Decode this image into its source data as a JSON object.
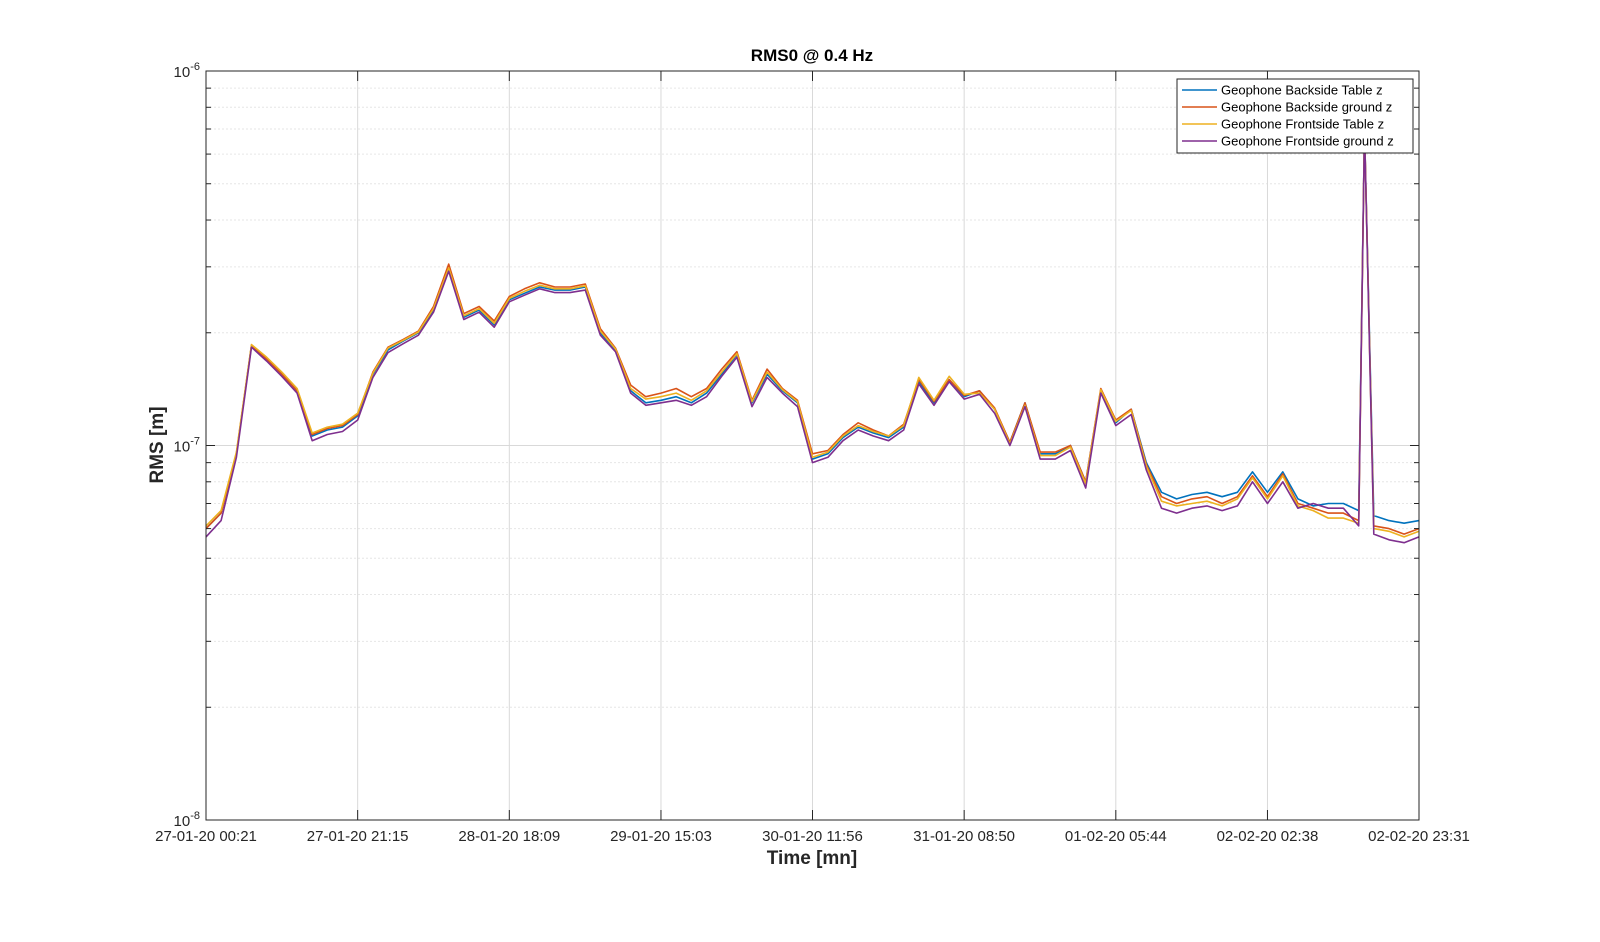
{
  "chart_data": {
    "type": "line",
    "title": "RMS0 @ 0.4 Hz",
    "xlabel": "Time [mn]",
    "ylabel": "RMS [m]",
    "yscale": "log",
    "ylim": [
      1e-08,
      1e-06
    ],
    "y_ticks": [
      {
        "base": "10",
        "exp": "-8",
        "value": 1e-08
      },
      {
        "base": "10",
        "exp": "-7",
        "value": 1e-07
      },
      {
        "base": "10",
        "exp": "-6",
        "value": 1e-06
      }
    ],
    "x_ticks": [
      "27-01-20 00:21",
      "27-01-20 21:15",
      "28-01-20 18:09",
      "29-01-20 15:03",
      "30-01-20 11:56",
      "31-01-20 08:50",
      "01-02-20 05:44",
      "02-02-20 02:38",
      "02-02-20 23:31"
    ],
    "xlim": [
      "27-01-20 00:21",
      "02-02-20 23:31"
    ],
    "grid": true,
    "legend_position": "top-right",
    "x": [
      "27-01-20 00:21",
      "27-01-20 02:26",
      "27-01-20 04:32",
      "27-01-20 06:37",
      "27-01-20 08:43",
      "27-01-20 10:48",
      "27-01-20 12:54",
      "27-01-20 14:59",
      "27-01-20 17:04",
      "27-01-20 19:10",
      "27-01-20 21:15",
      "27-01-20 23:21",
      "28-01-20 01:26",
      "28-01-20 03:32",
      "28-01-20 05:37",
      "28-01-20 07:42",
      "28-01-20 09:48",
      "28-01-20 11:53",
      "28-01-20 13:59",
      "28-01-20 16:04",
      "28-01-20 18:09",
      "28-01-20 20:15",
      "28-01-20 22:20",
      "29-01-20 00:26",
      "29-01-20 02:31",
      "29-01-20 04:37",
      "29-01-20 06:42",
      "29-01-20 08:47",
      "29-01-20 10:53",
      "29-01-20 12:58",
      "29-01-20 15:03",
      "29-01-20 17:09",
      "29-01-20 19:14",
      "29-01-20 21:20",
      "29-01-20 23:25",
      "30-01-20 01:31",
      "30-01-20 03:36",
      "30-01-20 05:41",
      "30-01-20 07:47",
      "30-01-20 09:52",
      "30-01-20 11:56",
      "30-01-20 14:03",
      "30-01-20 16:08",
      "30-01-20 18:14",
      "30-01-20 20:19",
      "30-01-20 22:25",
      "31-01-20 00:30",
      "31-01-20 02:35",
      "31-01-20 04:41",
      "31-01-20 06:46",
      "31-01-20 08:50",
      "31-01-20 10:57",
      "31-01-20 13:02",
      "31-01-20 15:08",
      "31-01-20 17:13",
      "31-01-20 19:19",
      "31-01-20 21:24",
      "31-01-20 23:29",
      "01-02-20 01:35",
      "01-02-20 03:40",
      "01-02-20 05:44",
      "01-02-20 07:51",
      "01-02-20 09:56",
      "01-02-20 12:02",
      "01-02-20 14:07",
      "01-02-20 16:13",
      "01-02-20 18:18",
      "01-02-20 20:23",
      "01-02-20 22:29",
      "02-02-20 00:34",
      "02-02-20 02:38",
      "02-02-20 04:45",
      "02-02-20 06:50",
      "02-02-20 08:56",
      "02-02-20 11:01",
      "02-02-20 13:06",
      "02-02-20 15:12",
      "02-02-20 17:17",
      "02-02-20 19:23",
      "02-02-20 21:28",
      "02-02-20 23:31"
    ],
    "series": [
      {
        "name": "Geophone Backside Table z",
        "color": "#0072BD",
        "values": [
          6e-08,
          6.6e-08,
          9.5e-08,
          1.85e-07,
          1.7e-07,
          1.55e-07,
          1.4e-07,
          1.06e-07,
          1.1e-07,
          1.12e-07,
          1.2e-07,
          1.55e-07,
          1.8e-07,
          1.9e-07,
          2e-07,
          2.3e-07,
          2.95e-07,
          2.2e-07,
          2.3e-07,
          2.1e-07,
          2.45e-07,
          2.55e-07,
          2.65e-07,
          2.6e-07,
          2.6e-07,
          2.65e-07,
          2e-07,
          1.8e-07,
          1.4e-07,
          1.3e-07,
          1.32e-07,
          1.35e-07,
          1.3e-07,
          1.38e-07,
          1.55e-07,
          1.75e-07,
          1.3e-07,
          1.55e-07,
          1.4e-07,
          1.3e-07,
          9.2e-08,
          9.5e-08,
          1.05e-07,
          1.12e-07,
          1.08e-07,
          1.05e-07,
          1.12e-07,
          1.48e-07,
          1.3e-07,
          1.5e-07,
          1.35e-07,
          1.4e-07,
          1.25e-07,
          1.02e-07,
          1.3e-07,
          9.5e-08,
          9.5e-08,
          1e-07,
          8e-08,
          1.4e-07,
          1.15e-07,
          1.25e-07,
          9e-08,
          7.5e-08,
          7.2e-08,
          7.4e-08,
          7.5e-08,
          7.3e-08,
          7.5e-08,
          8.5e-08,
          7.5e-08,
          8.5e-08,
          7.2e-08,
          6.9e-08,
          7e-08,
          7e-08,
          6.7e-08,
          6.5e-08,
          6.3e-08,
          6.2e-08,
          6.3e-08
        ]
      },
      {
        "name": "Geophone Backside ground z",
        "color": "#D95319",
        "values": [
          6e-08,
          6.6e-08,
          9.5e-08,
          1.85e-07,
          1.7e-07,
          1.55e-07,
          1.4e-07,
          1.07e-07,
          1.11e-07,
          1.13e-07,
          1.21e-07,
          1.57e-07,
          1.83e-07,
          1.92e-07,
          2.02e-07,
          2.35e-07,
          3.05e-07,
          2.25e-07,
          2.35e-07,
          2.15e-07,
          2.5e-07,
          2.62e-07,
          2.72e-07,
          2.65e-07,
          2.65e-07,
          2.7e-07,
          2.05e-07,
          1.82e-07,
          1.45e-07,
          1.35e-07,
          1.38e-07,
          1.42e-07,
          1.35e-07,
          1.42e-07,
          1.6e-07,
          1.78e-07,
          1.32e-07,
          1.6e-07,
          1.42e-07,
          1.32e-07,
          9.5e-08,
          9.7e-08,
          1.07e-07,
          1.15e-07,
          1.1e-07,
          1.06e-07,
          1.14e-07,
          1.5e-07,
          1.31e-07,
          1.5e-07,
          1.36e-07,
          1.4e-07,
          1.26e-07,
          1.02e-07,
          1.3e-07,
          9.6e-08,
          9.6e-08,
          1e-07,
          8e-08,
          1.42e-07,
          1.17e-07,
          1.25e-07,
          8.9e-08,
          7.3e-08,
          7e-08,
          7.2e-08,
          7.3e-08,
          7e-08,
          7.3e-08,
          8.3e-08,
          7.3e-08,
          8.4e-08,
          7e-08,
          6.8e-08,
          6.6e-08,
          6.6e-08,
          6.3e-08,
          6.1e-08,
          6e-08,
          5.8e-08,
          6e-08
        ]
      },
      {
        "name": "Geophone Frontside Table z",
        "color": "#EDB120",
        "values": [
          6.1e-08,
          6.7e-08,
          9.6e-08,
          1.86e-07,
          1.72e-07,
          1.57e-07,
          1.42e-07,
          1.08e-07,
          1.12e-07,
          1.14e-07,
          1.22e-07,
          1.56e-07,
          1.82e-07,
          1.91e-07,
          2.01e-07,
          2.32e-07,
          2.98e-07,
          2.22e-07,
          2.32e-07,
          2.12e-07,
          2.47e-07,
          2.58e-07,
          2.68e-07,
          2.62e-07,
          2.62e-07,
          2.67e-07,
          2.02e-07,
          1.81e-07,
          1.42e-07,
          1.33e-07,
          1.35e-07,
          1.38e-07,
          1.32e-07,
          1.4e-07,
          1.57e-07,
          1.76e-07,
          1.31e-07,
          1.57e-07,
          1.41e-07,
          1.31e-07,
          9.3e-08,
          9.6e-08,
          1.06e-07,
          1.13e-07,
          1.09e-07,
          1.06e-07,
          1.13e-07,
          1.52e-07,
          1.32e-07,
          1.53e-07,
          1.37e-07,
          1.38e-07,
          1.25e-07,
          1.01e-07,
          1.28e-07,
          9.4e-08,
          9.4e-08,
          9.9e-08,
          7.9e-08,
          1.41e-07,
          1.16e-07,
          1.24e-07,
          8.8e-08,
          7.1e-08,
          6.9e-08,
          7e-08,
          7.1e-08,
          6.9e-08,
          7.2e-08,
          8.2e-08,
          7.2e-08,
          8.3e-08,
          6.9e-08,
          6.7e-08,
          6.4e-08,
          6.4e-08,
          6.2e-08,
          6e-08,
          5.9e-08,
          5.7e-08,
          5.9e-08
        ]
      },
      {
        "name": "Geophone Frontside ground z",
        "color": "#7E2F8E",
        "values": [
          5.7e-08,
          6.3e-08,
          9.3e-08,
          1.83e-07,
          1.68e-07,
          1.53e-07,
          1.38e-07,
          1.03e-07,
          1.07e-07,
          1.09e-07,
          1.17e-07,
          1.52e-07,
          1.77e-07,
          1.87e-07,
          1.97e-07,
          2.27e-07,
          2.92e-07,
          2.17e-07,
          2.27e-07,
          2.07e-07,
          2.42e-07,
          2.52e-07,
          2.62e-07,
          2.56e-07,
          2.56e-07,
          2.6e-07,
          1.97e-07,
          1.78e-07,
          1.38e-07,
          1.28e-07,
          1.3e-07,
          1.32e-07,
          1.28e-07,
          1.35e-07,
          1.53e-07,
          1.72e-07,
          1.27e-07,
          1.52e-07,
          1.38e-07,
          1.27e-07,
          9e-08,
          9.3e-08,
          1.03e-07,
          1.1e-07,
          1.06e-07,
          1.03e-07,
          1.1e-07,
          1.46e-07,
          1.28e-07,
          1.48e-07,
          1.33e-07,
          1.37e-07,
          1.22e-07,
          1e-07,
          1.27e-07,
          9.2e-08,
          9.2e-08,
          9.7e-08,
          7.7e-08,
          1.38e-07,
          1.13e-07,
          1.21e-07,
          8.6e-08,
          6.8e-08,
          6.6e-08,
          6.8e-08,
          6.9e-08,
          6.7e-08,
          6.9e-08,
          8e-08,
          7e-08,
          8e-08,
          6.8e-08,
          7e-08,
          6.8e-08,
          6.8e-08,
          6.1e-08,
          5.8e-08,
          5.6e-08,
          5.5e-08,
          5.7e-08
        ]
      }
    ],
    "spike": {
      "x": "02-02-20 16:00",
      "value": 7e-07
    }
  }
}
